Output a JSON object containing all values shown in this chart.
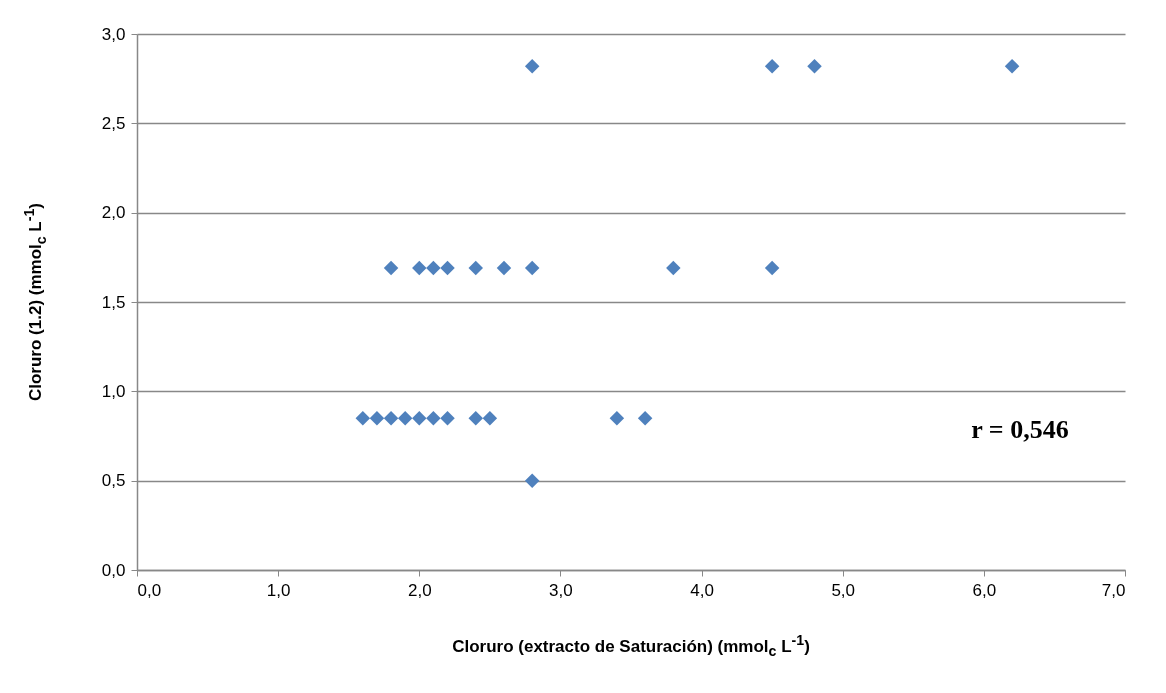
{
  "chart_data": {
    "type": "scatter",
    "xlabel": "Cloruro (extracto de Saturación) (mmol$_{c}$ L$^{-1}$)",
    "ylabel": "Cloruro (1.2) (mmol$_{c}$ L$^{-1}$)",
    "x": [
      2.8,
      4.5,
      4.8,
      6.2,
      1.8,
      2.0,
      2.1,
      2.2,
      2.4,
      2.6,
      2.8,
      3.8,
      4.5,
      1.6,
      1.7,
      1.8,
      1.9,
      2.0,
      2.1,
      2.2,
      2.4,
      2.5,
      3.4,
      3.6,
      2.8
    ],
    "series": [
      {
        "color": "#4f81bd",
        "values": [
          2.82,
          2.82,
          2.82,
          2.82,
          1.69,
          1.69,
          1.69,
          1.69,
          1.69,
          1.69,
          1.69,
          1.69,
          1.69,
          0.85,
          0.85,
          0.85,
          0.85,
          0.85,
          0.85,
          0.85,
          0.85,
          0.85,
          0.85,
          0.85,
          0.5
        ]
      }
    ],
    "xlim": [
      0,
      7
    ],
    "xticks": [
      {
        "value": 0,
        "label": "0,0"
      },
      {
        "value": 1,
        "label": "1,0"
      },
      {
        "value": 2,
        "label": "2,0"
      },
      {
        "value": 3,
        "label": "3,0"
      },
      {
        "value": 4,
        "label": "4,0"
      },
      {
        "value": 5,
        "label": "5,0"
      },
      {
        "value": 6,
        "label": "6,0"
      },
      {
        "value": 7,
        "label": "7,0"
      }
    ],
    "ylim": [
      0,
      3
    ],
    "yticks": [
      {
        "value": 0,
        "label": "0,0"
      },
      {
        "value": 0.5,
        "label": "0,5"
      },
      {
        "value": 1,
        "label": "1,0"
      },
      {
        "value": 1.5,
        "label": "1,5"
      },
      {
        "value": 2,
        "label": "2,0"
      },
      {
        "value": 2.5,
        "label": "2,5"
      },
      {
        "value": 3,
        "label": "3,0"
      }
    ],
    "grid": "y",
    "marker": "diamond",
    "legend": false,
    "annotations": [
      "r = 0,546"
    ]
  }
}
